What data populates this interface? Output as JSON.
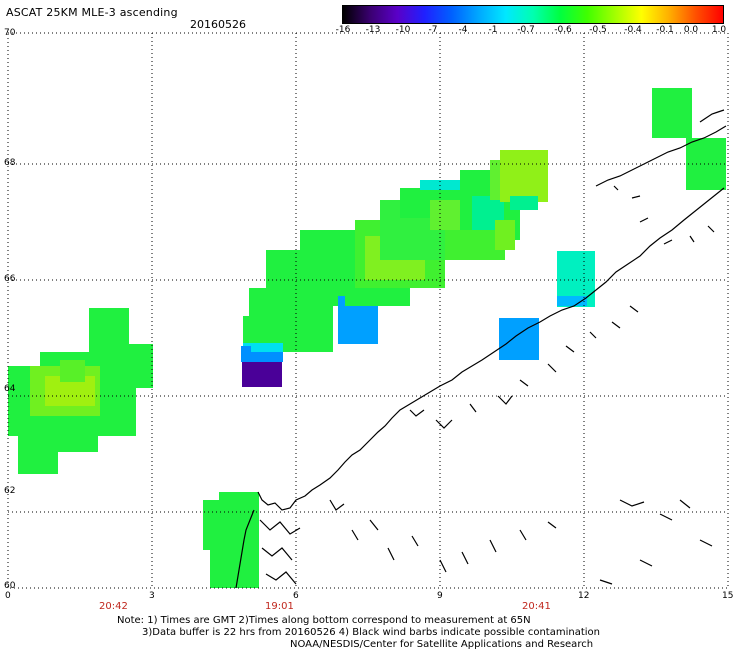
{
  "header": {
    "title": "ASCAT 25KM MLE-3 ascending",
    "date": "20160526"
  },
  "colorbar": {
    "labels": [
      "-16",
      "-13",
      "-10",
      "-7",
      "-4",
      "-1",
      "-0.7",
      "-0.6",
      "-0.5",
      "-0.4",
      "-0.1",
      "0.0",
      "1.0"
    ],
    "colors": [
      "#000000",
      "#3a0070",
      "#5a00c8",
      "#2020ff",
      "#0060ff",
      "#00a8ff",
      "#00e8ff",
      "#00ffb0",
      "#00ff40",
      "#40ff00",
      "#a0ff00",
      "#ffff00",
      "#ffb000",
      "#ff5000",
      "#ff0000"
    ]
  },
  "axes": {
    "lat_labels": [
      "70",
      "68",
      "66",
      "64",
      "62",
      "60"
    ],
    "lon_labels": [
      "0",
      "3",
      "6",
      "9",
      "12",
      "15"
    ],
    "time_labels": [
      "20:42",
      "19:01",
      "20:41"
    ]
  },
  "notes": {
    "line1": "Note: 1) Times are GMT 2)Times along bottom correspond to measurement at 65N",
    "line2": "3)Data buffer is 22 hrs from 20160526 4) Black wind barbs indicate possible contamination",
    "line3": "NOAA/NESDIS/Center for Satellite Applications and Research"
  }
}
